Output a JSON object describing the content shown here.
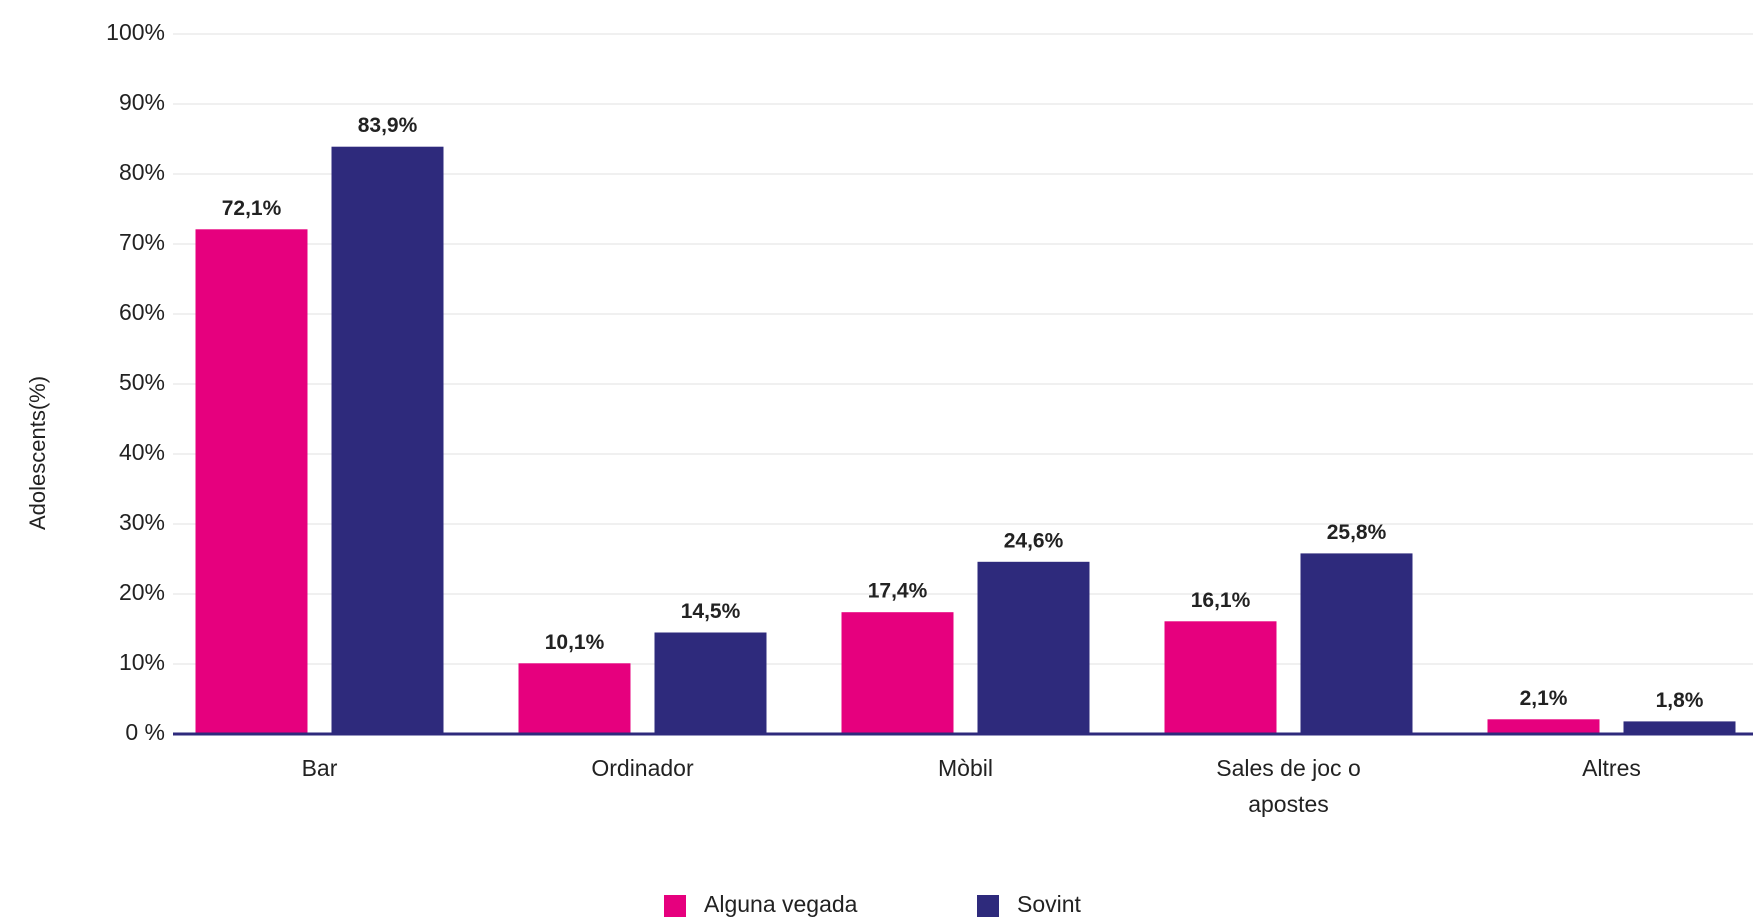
{
  "chart_data": {
    "type": "bar",
    "y_label": "Adolescents(%)",
    "categories": [
      "Bar",
      "Ordinador",
      "Mòbil",
      "Sales de joc o apostes",
      "Altres"
    ],
    "series": [
      {
        "name": "Alguna vegada",
        "color": "#e6007e",
        "values": [
          72.1,
          10.1,
          17.4,
          16.1,
          2.1
        ],
        "value_labels": [
          "72,1%",
          "10,1%",
          "17,4%",
          "16,1%",
          "2,1%"
        ]
      },
      {
        "name": "Sovint",
        "color": "#2e2a7c",
        "values": [
          83.9,
          14.5,
          24.6,
          25.8,
          1.8
        ],
        "value_labels": [
          "83,9%",
          "14,5%",
          "24,6%",
          "25,8%",
          "1,8%"
        ]
      }
    ],
    "ylim": [
      0,
      100
    ],
    "yticks": [
      {
        "value": 0,
        "label": "0 %"
      },
      {
        "value": 10,
        "label": "10%"
      },
      {
        "value": 20,
        "label": "20%"
      },
      {
        "value": 30,
        "label": "30%"
      },
      {
        "value": 40,
        "label": "40%"
      },
      {
        "value": 50,
        "label": "50%"
      },
      {
        "value": 60,
        "label": "60%"
      },
      {
        "value": 70,
        "label": "70%"
      },
      {
        "value": 80,
        "label": "80%"
      },
      {
        "value": 90,
        "label": "90%"
      },
      {
        "value": 100,
        "label": "100%"
      }
    ],
    "grid": true,
    "legend": "bottom"
  }
}
